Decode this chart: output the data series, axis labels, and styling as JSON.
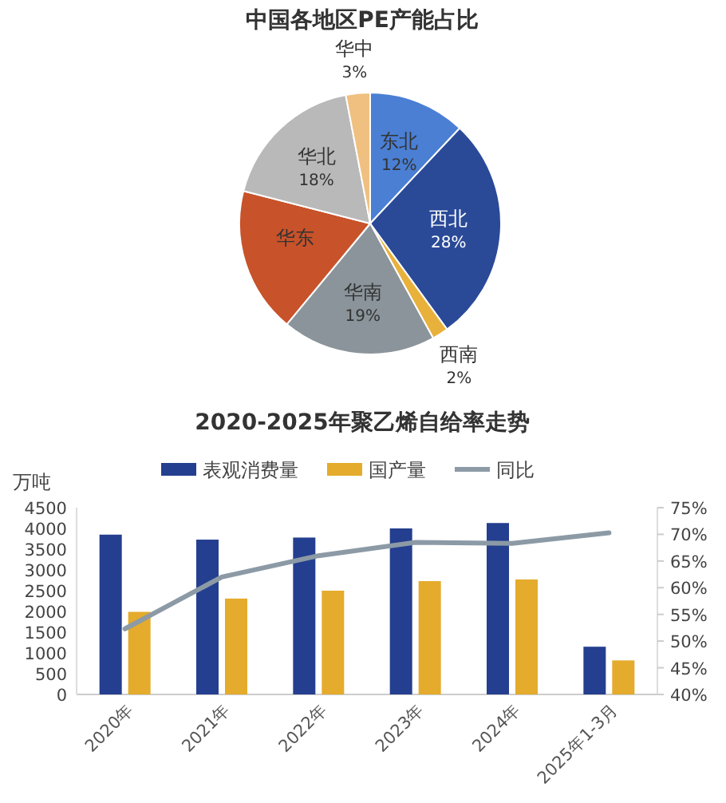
{
  "chart_data": [
    {
      "type": "pie",
      "title": "中国各地区PE产能占比",
      "categories": [
        "东北",
        "西北",
        "西南",
        "华南",
        "华东",
        "华北",
        "华中"
      ],
      "values": [
        12,
        28,
        2,
        19,
        18,
        18,
        3
      ],
      "colors": [
        "#4a7fd4",
        "#2a4a98",
        "#e8b13c",
        "#8a949a",
        "#c8522a",
        "#b9b9b9",
        "#f0c080"
      ],
      "value_labels": [
        "12%",
        "28%",
        "2%",
        "19%",
        null,
        "18%",
        "3%"
      ]
    },
    {
      "type": "bar",
      "title": "2020-2025年聚乙烯自给率走势",
      "ylabel": "万吨",
      "legend": "top",
      "categories": [
        "2020年",
        "2021年",
        "2022年",
        "2023年",
        "2024年",
        "2025年1-3月"
      ],
      "series": [
        {
          "name": "表观消费量",
          "color": "#243f8f",
          "values": [
            3850,
            3730,
            3780,
            4000,
            4130,
            1150
          ]
        },
        {
          "name": "国产量",
          "color": "#e4ab2c",
          "values": [
            1990,
            2310,
            2500,
            2730,
            2770,
            820
          ]
        },
        {
          "name": "同比",
          "type": "line",
          "axis": "y2",
          "color": "#8c9aa6",
          "values": [
            52.3,
            62,
            66,
            68.5,
            68.3,
            70.3
          ]
        }
      ],
      "ylim": [
        0,
        4500
      ],
      "yticks": [
        0,
        500,
        1000,
        1500,
        2000,
        2500,
        3000,
        3500,
        4000,
        4500
      ],
      "y2lim": [
        40,
        75
      ],
      "y2ticks": [
        {
          "value": 40,
          "label": "40%"
        },
        {
          "value": 45,
          "label": "45%"
        },
        {
          "value": 50,
          "label": "50%"
        },
        {
          "value": 55,
          "label": "55%"
        },
        {
          "value": 60,
          "label": "60%"
        },
        {
          "value": 65,
          "label": "65%"
        },
        {
          "value": 70,
          "label": "70%"
        },
        {
          "value": 75,
          "label": "75%"
        }
      ]
    }
  ]
}
